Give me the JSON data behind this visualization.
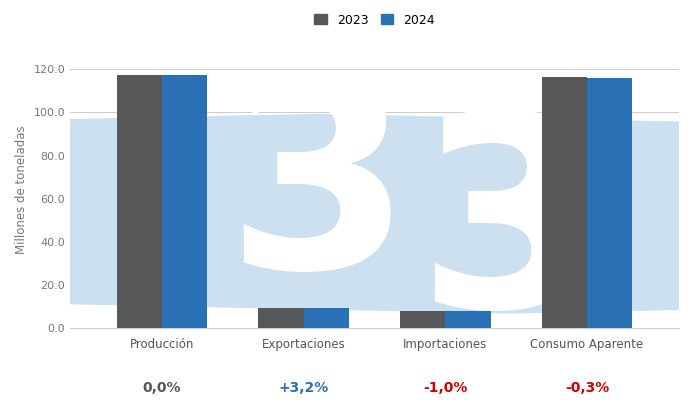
{
  "categories": [
    "Producción",
    "Exportaciones",
    "Importaciones",
    "Consumo Aparente"
  ],
  "values_2023": [
    117.5,
    9.1,
    8.0,
    116.3
  ],
  "values_2024": [
    117.5,
    9.4,
    7.9,
    116.0
  ],
  "color_2023": "#555759",
  "color_2024": "#2970b4",
  "ylabel": "Millones de toneladas",
  "ylim": [
    0,
    128
  ],
  "yticks": [
    0.0,
    20.0,
    40.0,
    60.0,
    80.0,
    100.0,
    120.0
  ],
  "legend_labels": [
    "2023",
    "2024"
  ],
  "annotations": [
    "0,0%",
    "+3,2%",
    "-1,0%",
    "-0,3%"
  ],
  "annotation_colors": [
    "#555759",
    "#2970b4",
    "#cc0000",
    "#cc0000"
  ],
  "background_color": "#ffffff",
  "bar_width": 0.32,
  "watermark_color": "#cce0f0"
}
